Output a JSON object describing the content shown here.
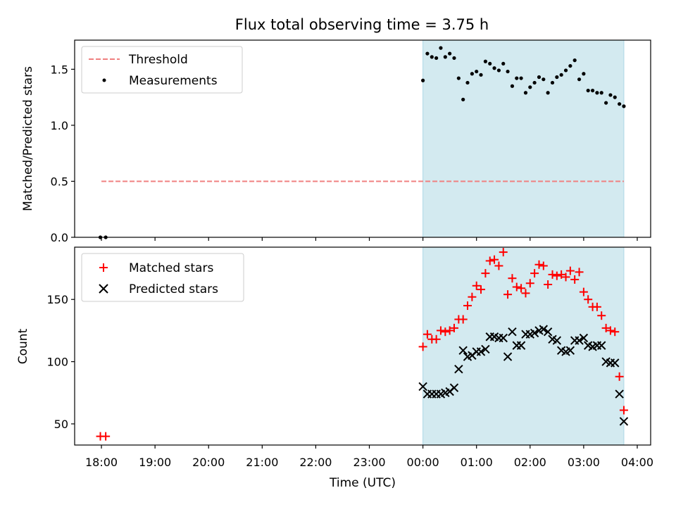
{
  "title": "Flux total observing time = 3.75 h",
  "xlabel": "Time (UTC)",
  "x_ticks": [
    "18:00",
    "19:00",
    "20:00",
    "21:00",
    "22:00",
    "23:00",
    "00:00",
    "01:00",
    "02:00",
    "03:00",
    "04:00"
  ],
  "chart_data": [
    {
      "type": "scatter",
      "ylabel": "Matched/Predicted stars",
      "xlim_hours": [
        17.5,
        28.25
      ],
      "ylim": [
        0,
        1.76
      ],
      "y_ticks": [
        "0.0",
        "0.5",
        "1.0",
        "1.5"
      ],
      "y_tick_values": [
        0,
        0.5,
        1.0,
        1.5
      ],
      "legend": {
        "placement": "top-left",
        "entries": [
          "Threshold",
          "Measurements"
        ]
      },
      "shaded_region_hours": [
        24.0,
        27.75
      ],
      "shade_color": "#d3eaf0",
      "threshold": {
        "name": "Threshold",
        "y": 0.5,
        "x_range_hours": [
          18.0,
          27.75
        ],
        "color": "#f08080",
        "style": "dashed"
      },
      "series": [
        {
          "name": "Measurements",
          "color": "#000000",
          "x_hours": [
            17.98,
            18.08,
            24.0,
            24.083,
            24.167,
            24.25,
            24.333,
            24.417,
            24.5,
            24.583,
            24.667,
            24.75,
            24.833,
            24.917,
            25.0,
            25.083,
            25.167,
            25.25,
            25.333,
            25.417,
            25.5,
            25.583,
            25.667,
            25.75,
            25.833,
            25.917,
            26.0,
            26.083,
            26.167,
            26.25,
            26.333,
            26.417,
            26.5,
            26.583,
            26.667,
            26.75,
            26.833,
            26.917,
            27.0,
            27.083,
            27.167,
            27.25,
            27.333,
            27.417,
            27.5,
            27.583,
            27.667,
            27.75
          ],
          "y": [
            0.0,
            0.0,
            1.4,
            1.64,
            1.61,
            1.6,
            1.69,
            1.61,
            1.64,
            1.6,
            1.42,
            1.23,
            1.38,
            1.46,
            1.48,
            1.45,
            1.57,
            1.55,
            1.51,
            1.49,
            1.55,
            1.48,
            1.35,
            1.42,
            1.42,
            1.29,
            1.34,
            1.38,
            1.43,
            1.41,
            1.29,
            1.38,
            1.43,
            1.45,
            1.49,
            1.53,
            1.58,
            1.41,
            1.46,
            1.31,
            1.31,
            1.29,
            1.29,
            1.2,
            1.27,
            1.25,
            1.19,
            1.17
          ]
        }
      ]
    },
    {
      "type": "scatter",
      "ylabel": "Count",
      "xlim_hours": [
        17.5,
        28.25
      ],
      "ylim": [
        33,
        192
      ],
      "y_ticks": [
        "50",
        "100",
        "150"
      ],
      "y_tick_values": [
        50,
        100,
        150
      ],
      "legend": {
        "placement": "top-left",
        "entries": [
          "Matched stars",
          "Predicted stars"
        ]
      },
      "shaded_region_hours": [
        24.0,
        27.75
      ],
      "series": [
        {
          "name": "Matched stars",
          "marker": "plus",
          "color": "#ff0000",
          "x_hours": [
            17.98,
            18.08,
            24.0,
            24.083,
            24.167,
            24.25,
            24.333,
            24.417,
            24.5,
            24.583,
            24.667,
            24.75,
            24.833,
            24.917,
            25.0,
            25.083,
            25.167,
            25.25,
            25.333,
            25.417,
            25.5,
            25.583,
            25.667,
            25.75,
            25.833,
            25.917,
            26.0,
            26.083,
            26.167,
            26.25,
            26.333,
            26.417,
            26.5,
            26.583,
            26.667,
            26.75,
            26.833,
            26.917,
            27.0,
            27.083,
            27.167,
            27.25,
            27.333,
            27.417,
            27.5,
            27.583,
            27.667,
            27.75
          ],
          "y": [
            40,
            40,
            112,
            122,
            118,
            118,
            125,
            124,
            125,
            127,
            134,
            134,
            145,
            152,
            161,
            158,
            171,
            181,
            182,
            177,
            188,
            154,
            167,
            160,
            159,
            155,
            163,
            171,
            178,
            177,
            162,
            170,
            169,
            170,
            168,
            173,
            166,
            172,
            156,
            150,
            144,
            144,
            137,
            127,
            125,
            124,
            88,
            61
          ]
        },
        {
          "name": "Predicted stars",
          "marker": "x",
          "color": "#000000",
          "x_hours": [
            24.0,
            24.083,
            24.167,
            24.25,
            24.333,
            24.417,
            24.5,
            24.583,
            24.667,
            24.75,
            24.833,
            24.917,
            25.0,
            25.083,
            25.167,
            25.25,
            25.333,
            25.417,
            25.5,
            25.583,
            25.667,
            25.75,
            25.833,
            25.917,
            26.0,
            26.083,
            26.167,
            26.25,
            26.333,
            26.417,
            26.5,
            26.583,
            26.667,
            26.75,
            26.833,
            26.917,
            27.0,
            27.083,
            27.167,
            27.25,
            27.333,
            27.417,
            27.5,
            27.583,
            27.667,
            27.75
          ],
          "y": [
            80,
            74,
            74,
            74,
            74,
            75,
            76,
            79,
            94,
            109,
            104,
            105,
            108,
            108,
            110,
            120,
            120,
            119,
            119,
            104,
            124,
            113,
            113,
            122,
            122,
            123,
            125,
            126,
            124,
            118,
            117,
            109,
            108,
            109,
            117,
            117,
            119,
            113,
            112,
            113,
            113,
            100,
            99,
            99,
            74,
            52
          ]
        }
      ]
    }
  ]
}
